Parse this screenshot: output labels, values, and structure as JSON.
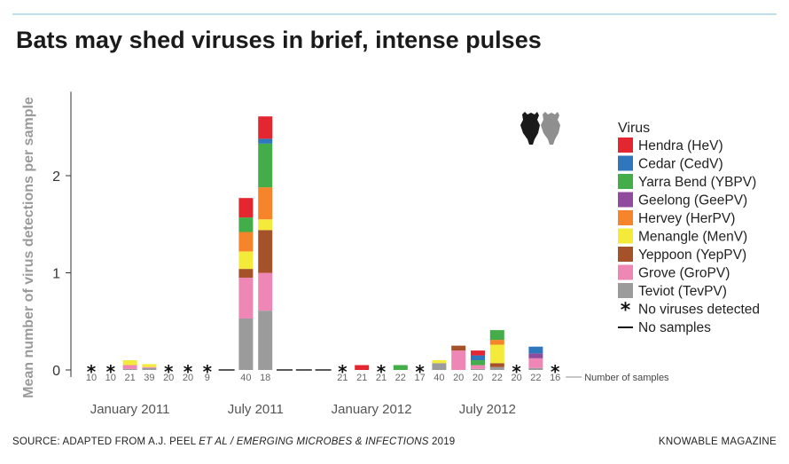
{
  "title": "Bats may shed viruses in brief, intense pulses",
  "source": {
    "prefix": "SOURCE: ADAPTED FROM A.J. PEEL ",
    "italic": "ET AL / EMERGING MICROBES & INFECTIONS",
    "suffix": " 2019"
  },
  "brand": "KNOWABLE MAGAZINE",
  "chart_data": {
    "type": "bar",
    "stacked": true,
    "ylabel": "Mean number of virus detections per sample",
    "ylim": [
      0,
      2.8
    ],
    "yticks": [
      "0",
      "1",
      "2"
    ],
    "ytick_values": [
      0,
      1,
      2
    ],
    "xtick_labels": [
      {
        "label": "January 2011",
        "at_index": 2
      },
      {
        "label": "July 2011",
        "at_index": 8.5
      },
      {
        "label": "January 2012",
        "at_index": 14.5
      },
      {
        "label": "July 2012",
        "at_index": 20.5
      }
    ],
    "samples_label": "Number of samples",
    "legend_title": "Virus",
    "legend_position": "right",
    "no_virus_label": "No viruses detected",
    "no_samples_label": "No samples",
    "series": [
      {
        "key": "hev",
        "name": "Hendra (HeV)",
        "color": "#e3262f"
      },
      {
        "key": "cedv",
        "name": "Cedar (CedV)",
        "color": "#2f77bd"
      },
      {
        "key": "ybpv",
        "name": "Yarra Bend (YBPV)",
        "color": "#43ad49"
      },
      {
        "key": "geepv",
        "name": "Geelong (GeePV)",
        "color": "#914b9e"
      },
      {
        "key": "herpv",
        "name": "Hervey (HerPV)",
        "color": "#f5842b"
      },
      {
        "key": "menv",
        "name": "Menangle (MenV)",
        "color": "#f4ea3a"
      },
      {
        "key": "yeppv",
        "name": "Yeppoon (YepPV)",
        "color": "#a5522a"
      },
      {
        "key": "gropv",
        "name": "Grove (GroPV)",
        "color": "#ee87b5"
      },
      {
        "key": "tevpv",
        "name": "Teviot (TevPV)",
        "color": "#9b9b9b"
      }
    ],
    "bars": [
      {
        "n": "10",
        "marker": "none"
      },
      {
        "n": "10",
        "marker": "none"
      },
      {
        "n": "21",
        "values": {
          "tevpv": 0.01,
          "gropv": 0.04,
          "menv": 0.05
        }
      },
      {
        "n": "39",
        "values": {
          "tevpv": 0.02,
          "gropv": 0.01,
          "menv": 0.03
        }
      },
      {
        "n": "20",
        "marker": "none"
      },
      {
        "n": "20",
        "marker": "none"
      },
      {
        "n": "9",
        "marker": "none"
      },
      {
        "n": "",
        "marker": "nosample"
      },
      {
        "n": "40",
        "values": {
          "tevpv": 0.53,
          "gropv": 0.42,
          "yeppv": 0.09,
          "menv": 0.18,
          "herpv": 0.2,
          "ybpv": 0.15,
          "hev": 0.2
        }
      },
      {
        "n": "18",
        "values": {
          "tevpv": 0.61,
          "gropv": 0.39,
          "yeppv": 0.44,
          "menv": 0.11,
          "herpv": 0.33,
          "ybpv": 0.45,
          "cedv": 0.05,
          "hev": 0.23
        }
      },
      {
        "n": "",
        "marker": "nosample"
      },
      {
        "n": "",
        "marker": "nosample"
      },
      {
        "n": "",
        "marker": "nosample"
      },
      {
        "n": "21",
        "marker": "none"
      },
      {
        "n": "21",
        "values": {
          "hev": 0.05
        }
      },
      {
        "n": "21",
        "marker": "none"
      },
      {
        "n": "22",
        "values": {
          "ybpv": 0.05
        }
      },
      {
        "n": "17",
        "marker": "none"
      },
      {
        "n": "40",
        "values": {
          "tevpv": 0.07,
          "menv": 0.03
        }
      },
      {
        "n": "20",
        "values": {
          "gropv": 0.2,
          "yeppv": 0.05
        }
      },
      {
        "n": "20",
        "values": {
          "tevpv": 0.01,
          "gropv": 0.04,
          "ybpv": 0.05,
          "cedv": 0.05,
          "hev": 0.05
        }
      },
      {
        "n": "22",
        "values": {
          "tevpv": 0.03,
          "yeppv": 0.04,
          "menv": 0.19,
          "herpv": 0.05,
          "ybpv": 0.1
        }
      },
      {
        "n": "20",
        "marker": "none"
      },
      {
        "n": "22",
        "values": {
          "tevpv": 0.02,
          "gropv": 0.1,
          "geepv": 0.05,
          "cedv": 0.07
        }
      },
      {
        "n": "16",
        "marker": "none"
      }
    ]
  }
}
